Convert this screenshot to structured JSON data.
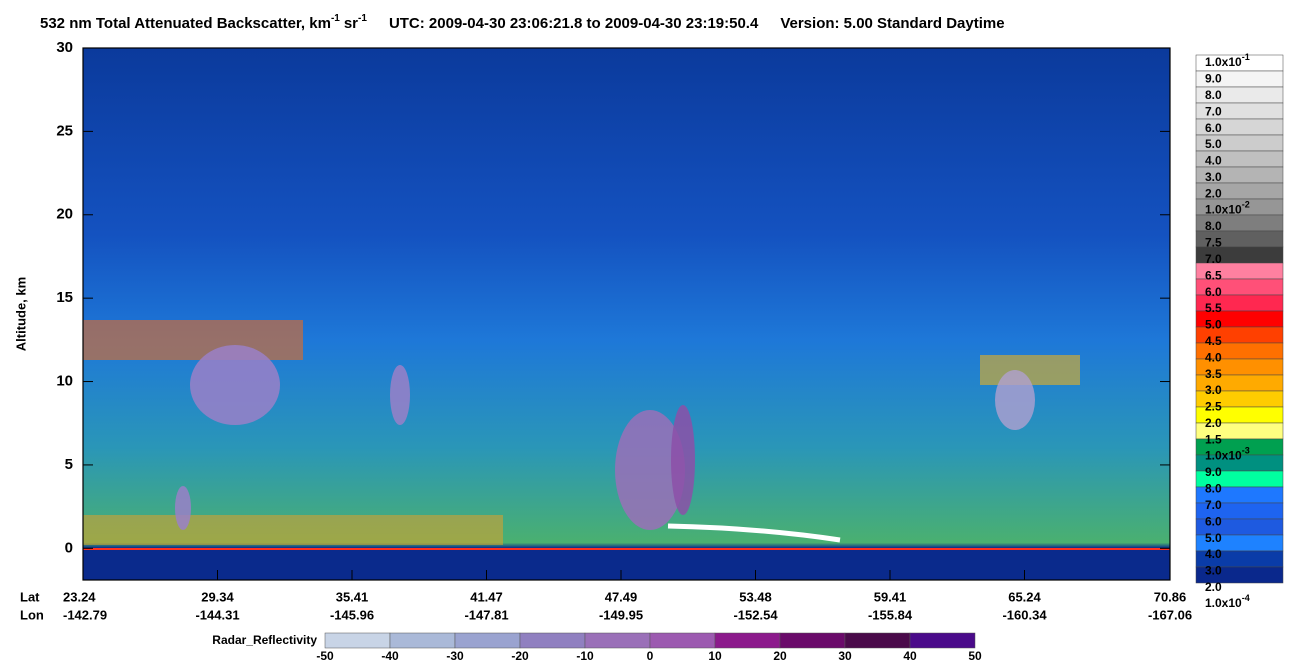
{
  "chart_data": {
    "type": "curtain",
    "title": {
      "main": "532 nm Total Attenuated Backscatter, km",
      "exp1": "-1",
      "unit2": "sr",
      "exp2": "-1",
      "time": "UTC:  2009-04-30 23:06:21.8  to  2009-04-30 23:19:50.4",
      "version": "Version: 5.00  Standard  Daytime"
    },
    "ylabel": "Altitude, km",
    "ylim": [
      -1.9,
      30
    ],
    "yticks": [
      0,
      5,
      10,
      15,
      20,
      25,
      30
    ],
    "x_rows": {
      "lat_label": "Lat",
      "lon_label": "Lon"
    },
    "lat": [
      23.24,
      29.34,
      35.41,
      41.47,
      47.49,
      53.48,
      59.41,
      65.24,
      70.86
    ],
    "lon": [
      -142.79,
      -144.31,
      -145.96,
      -147.81,
      -149.95,
      -152.54,
      -155.84,
      -160.34,
      -167.06
    ],
    "colorbar": {
      "labels": [
        {
          "text": "1.0x10",
          "sup": "-1"
        },
        "9.0",
        "8.0",
        "7.0",
        "6.0",
        "5.0",
        "4.0",
        "3.0",
        "2.0",
        {
          "text": "1.0x10",
          "sup": "-2"
        },
        "8.0",
        "7.5",
        "7.0",
        "6.5",
        "6.0",
        "5.5",
        "5.0",
        "4.5",
        "4.0",
        "3.5",
        "3.0",
        "2.5",
        "2.0",
        "1.5",
        {
          "text": "1.0x10",
          "sup": "-3"
        },
        "9.0",
        "8.0",
        "7.0",
        "6.0",
        "5.0",
        "4.0",
        "3.0",
        "2.0",
        {
          "text": "1.0x10",
          "sup": "-4"
        }
      ],
      "colors": [
        "#ffffff",
        "#f4f4f4",
        "#eaeaea",
        "#e0e0e0",
        "#d6d6d6",
        "#cccccc",
        "#c0c0c0",
        "#b4b4b4",
        "#a6a6a6",
        "#969696",
        "#7e7e7e",
        "#606060",
        "#3c3c3c",
        "#ff80a0",
        "#ff5078",
        "#ff2850",
        "#ff0000",
        "#ff4000",
        "#ff7000",
        "#ff9000",
        "#ffaa00",
        "#ffcc00",
        "#ffff00",
        "#ffff80",
        "#00a050",
        "#009080",
        "#00ffa0",
        "#1e78ff",
        "#1e64f0",
        "#1e5ae0",
        "#1e82ff",
        "#0a3ca8",
        "#0a288c"
      ]
    },
    "radar": {
      "label": "Radar_Reflectivity",
      "xlim": [
        -50,
        50
      ],
      "xticks": [
        -50,
        -40,
        -30,
        -20,
        -10,
        0,
        10,
        20,
        30,
        40,
        50
      ],
      "colors": [
        "#c8d4e6",
        "#aab9d8",
        "#9aa3d0",
        "#9080c0",
        "#9a70b8",
        "#9c5ab0",
        "#8c1a8c",
        "#6a0a6a",
        "#4a0a4a",
        "#4a0a8a"
      ]
    }
  }
}
